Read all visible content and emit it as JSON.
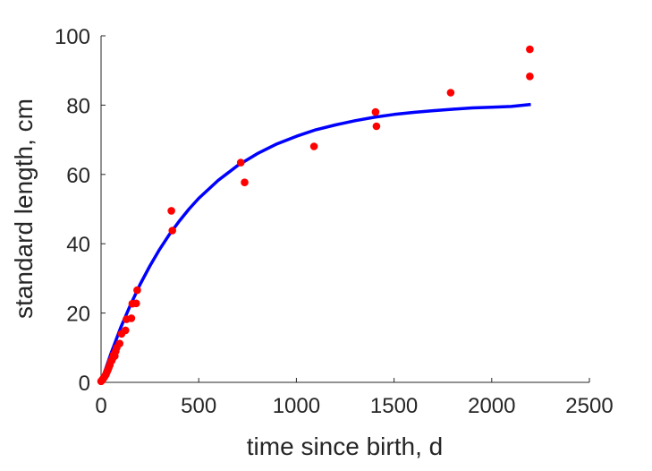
{
  "chart_data": {
    "type": "scatter",
    "xlabel": "time since birth, d",
    "ylabel": "standard length, cm",
    "xlim": [
      0,
      2500
    ],
    "ylim": [
      0,
      100
    ],
    "xticks": [
      0,
      500,
      1000,
      1500,
      2000,
      2500
    ],
    "yticks": [
      0,
      20,
      40,
      60,
      80,
      100
    ],
    "grid": false,
    "series": [
      {
        "kind": "points",
        "color": "#ff0000",
        "points": [
          [
            0,
            0.3
          ],
          [
            5,
            0.6
          ],
          [
            10,
            1.0
          ],
          [
            15,
            1.4
          ],
          [
            20,
            1.8
          ],
          [
            25,
            2.3
          ],
          [
            30,
            3.0
          ],
          [
            35,
            3.6
          ],
          [
            40,
            4.3
          ],
          [
            45,
            5.0
          ],
          [
            50,
            6.0
          ],
          [
            55,
            6.3
          ],
          [
            60,
            7.0
          ],
          [
            65,
            8.0
          ],
          [
            70,
            7.6
          ],
          [
            75,
            9.0
          ],
          [
            80,
            10.0
          ],
          [
            95,
            11.2
          ],
          [
            105,
            14.0
          ],
          [
            125,
            15.0
          ],
          [
            130,
            18.2
          ],
          [
            155,
            18.5
          ],
          [
            160,
            22.7
          ],
          [
            180,
            22.8
          ],
          [
            185,
            26.6
          ],
          [
            360,
            49.5
          ],
          [
            365,
            43.8
          ],
          [
            715,
            63.4
          ],
          [
            735,
            57.7
          ],
          [
            1090,
            68.1
          ],
          [
            1405,
            78.0
          ],
          [
            1410,
            73.9
          ],
          [
            1790,
            83.6
          ],
          [
            2195,
            96.1
          ],
          [
            2195,
            88.3
          ]
        ]
      },
      {
        "kind": "fitted-curve",
        "color": "#0000ff",
        "points": [
          [
            0,
            0
          ],
          [
            50,
            8.2
          ],
          [
            100,
            15.7
          ],
          [
            150,
            22.3
          ],
          [
            200,
            28.3
          ],
          [
            250,
            33.6
          ],
          [
            300,
            38.4
          ],
          [
            350,
            42.7
          ],
          [
            400,
            46.5
          ],
          [
            450,
            50.0
          ],
          [
            500,
            53.1
          ],
          [
            600,
            58.3
          ],
          [
            700,
            62.6
          ],
          [
            800,
            66.0
          ],
          [
            900,
            68.8
          ],
          [
            1000,
            71.0
          ],
          [
            1100,
            72.9
          ],
          [
            1200,
            74.3
          ],
          [
            1300,
            75.5
          ],
          [
            1400,
            76.5
          ],
          [
            1500,
            77.3
          ],
          [
            1600,
            77.9
          ],
          [
            1700,
            78.4
          ],
          [
            1800,
            78.8
          ],
          [
            1900,
            79.2
          ],
          [
            2000,
            79.4
          ],
          [
            2100,
            79.6
          ],
          [
            2200,
            80.2
          ]
        ]
      }
    ]
  }
}
